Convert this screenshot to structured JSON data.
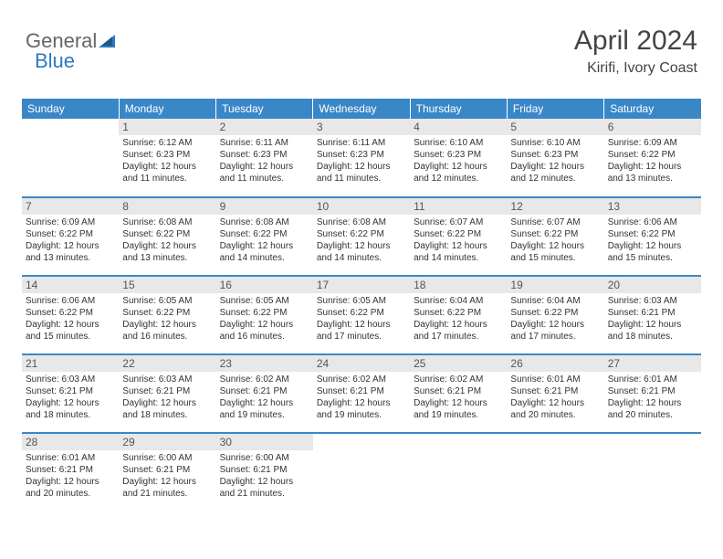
{
  "logo": {
    "general": "General",
    "blue": "Blue"
  },
  "title": "April 2024",
  "subtitle": "Kirifi, Ivory Coast",
  "colors": {
    "header_bg": "#3a87c8",
    "header_text": "#ffffff",
    "daynum_bg": "#e8e8e8",
    "daynum_text": "#555555",
    "cell_text": "#333333",
    "rule": "#3a87c8"
  },
  "weekdays": [
    "Sunday",
    "Monday",
    "Tuesday",
    "Wednesday",
    "Thursday",
    "Friday",
    "Saturday"
  ],
  "weeks": [
    [
      {
        "n": "",
        "sr": "",
        "ss": "",
        "dl": ""
      },
      {
        "n": "1",
        "sr": "Sunrise: 6:12 AM",
        "ss": "Sunset: 6:23 PM",
        "dl": "Daylight: 12 hours and 11 minutes."
      },
      {
        "n": "2",
        "sr": "Sunrise: 6:11 AM",
        "ss": "Sunset: 6:23 PM",
        "dl": "Daylight: 12 hours and 11 minutes."
      },
      {
        "n": "3",
        "sr": "Sunrise: 6:11 AM",
        "ss": "Sunset: 6:23 PM",
        "dl": "Daylight: 12 hours and 11 minutes."
      },
      {
        "n": "4",
        "sr": "Sunrise: 6:10 AM",
        "ss": "Sunset: 6:23 PM",
        "dl": "Daylight: 12 hours and 12 minutes."
      },
      {
        "n": "5",
        "sr": "Sunrise: 6:10 AM",
        "ss": "Sunset: 6:23 PM",
        "dl": "Daylight: 12 hours and 12 minutes."
      },
      {
        "n": "6",
        "sr": "Sunrise: 6:09 AM",
        "ss": "Sunset: 6:22 PM",
        "dl": "Daylight: 12 hours and 13 minutes."
      }
    ],
    [
      {
        "n": "7",
        "sr": "Sunrise: 6:09 AM",
        "ss": "Sunset: 6:22 PM",
        "dl": "Daylight: 12 hours and 13 minutes."
      },
      {
        "n": "8",
        "sr": "Sunrise: 6:08 AM",
        "ss": "Sunset: 6:22 PM",
        "dl": "Daylight: 12 hours and 13 minutes."
      },
      {
        "n": "9",
        "sr": "Sunrise: 6:08 AM",
        "ss": "Sunset: 6:22 PM",
        "dl": "Daylight: 12 hours and 14 minutes."
      },
      {
        "n": "10",
        "sr": "Sunrise: 6:08 AM",
        "ss": "Sunset: 6:22 PM",
        "dl": "Daylight: 12 hours and 14 minutes."
      },
      {
        "n": "11",
        "sr": "Sunrise: 6:07 AM",
        "ss": "Sunset: 6:22 PM",
        "dl": "Daylight: 12 hours and 14 minutes."
      },
      {
        "n": "12",
        "sr": "Sunrise: 6:07 AM",
        "ss": "Sunset: 6:22 PM",
        "dl": "Daylight: 12 hours and 15 minutes."
      },
      {
        "n": "13",
        "sr": "Sunrise: 6:06 AM",
        "ss": "Sunset: 6:22 PM",
        "dl": "Daylight: 12 hours and 15 minutes."
      }
    ],
    [
      {
        "n": "14",
        "sr": "Sunrise: 6:06 AM",
        "ss": "Sunset: 6:22 PM",
        "dl": "Daylight: 12 hours and 15 minutes."
      },
      {
        "n": "15",
        "sr": "Sunrise: 6:05 AM",
        "ss": "Sunset: 6:22 PM",
        "dl": "Daylight: 12 hours and 16 minutes."
      },
      {
        "n": "16",
        "sr": "Sunrise: 6:05 AM",
        "ss": "Sunset: 6:22 PM",
        "dl": "Daylight: 12 hours and 16 minutes."
      },
      {
        "n": "17",
        "sr": "Sunrise: 6:05 AM",
        "ss": "Sunset: 6:22 PM",
        "dl": "Daylight: 12 hours and 17 minutes."
      },
      {
        "n": "18",
        "sr": "Sunrise: 6:04 AM",
        "ss": "Sunset: 6:22 PM",
        "dl": "Daylight: 12 hours and 17 minutes."
      },
      {
        "n": "19",
        "sr": "Sunrise: 6:04 AM",
        "ss": "Sunset: 6:22 PM",
        "dl": "Daylight: 12 hours and 17 minutes."
      },
      {
        "n": "20",
        "sr": "Sunrise: 6:03 AM",
        "ss": "Sunset: 6:21 PM",
        "dl": "Daylight: 12 hours and 18 minutes."
      }
    ],
    [
      {
        "n": "21",
        "sr": "Sunrise: 6:03 AM",
        "ss": "Sunset: 6:21 PM",
        "dl": "Daylight: 12 hours and 18 minutes."
      },
      {
        "n": "22",
        "sr": "Sunrise: 6:03 AM",
        "ss": "Sunset: 6:21 PM",
        "dl": "Daylight: 12 hours and 18 minutes."
      },
      {
        "n": "23",
        "sr": "Sunrise: 6:02 AM",
        "ss": "Sunset: 6:21 PM",
        "dl": "Daylight: 12 hours and 19 minutes."
      },
      {
        "n": "24",
        "sr": "Sunrise: 6:02 AM",
        "ss": "Sunset: 6:21 PM",
        "dl": "Daylight: 12 hours and 19 minutes."
      },
      {
        "n": "25",
        "sr": "Sunrise: 6:02 AM",
        "ss": "Sunset: 6:21 PM",
        "dl": "Daylight: 12 hours and 19 minutes."
      },
      {
        "n": "26",
        "sr": "Sunrise: 6:01 AM",
        "ss": "Sunset: 6:21 PM",
        "dl": "Daylight: 12 hours and 20 minutes."
      },
      {
        "n": "27",
        "sr": "Sunrise: 6:01 AM",
        "ss": "Sunset: 6:21 PM",
        "dl": "Daylight: 12 hours and 20 minutes."
      }
    ],
    [
      {
        "n": "28",
        "sr": "Sunrise: 6:01 AM",
        "ss": "Sunset: 6:21 PM",
        "dl": "Daylight: 12 hours and 20 minutes."
      },
      {
        "n": "29",
        "sr": "Sunrise: 6:00 AM",
        "ss": "Sunset: 6:21 PM",
        "dl": "Daylight: 12 hours and 21 minutes."
      },
      {
        "n": "30",
        "sr": "Sunrise: 6:00 AM",
        "ss": "Sunset: 6:21 PM",
        "dl": "Daylight: 12 hours and 21 minutes."
      },
      {
        "n": "",
        "sr": "",
        "ss": "",
        "dl": ""
      },
      {
        "n": "",
        "sr": "",
        "ss": "",
        "dl": ""
      },
      {
        "n": "",
        "sr": "",
        "ss": "",
        "dl": ""
      },
      {
        "n": "",
        "sr": "",
        "ss": "",
        "dl": ""
      }
    ]
  ]
}
